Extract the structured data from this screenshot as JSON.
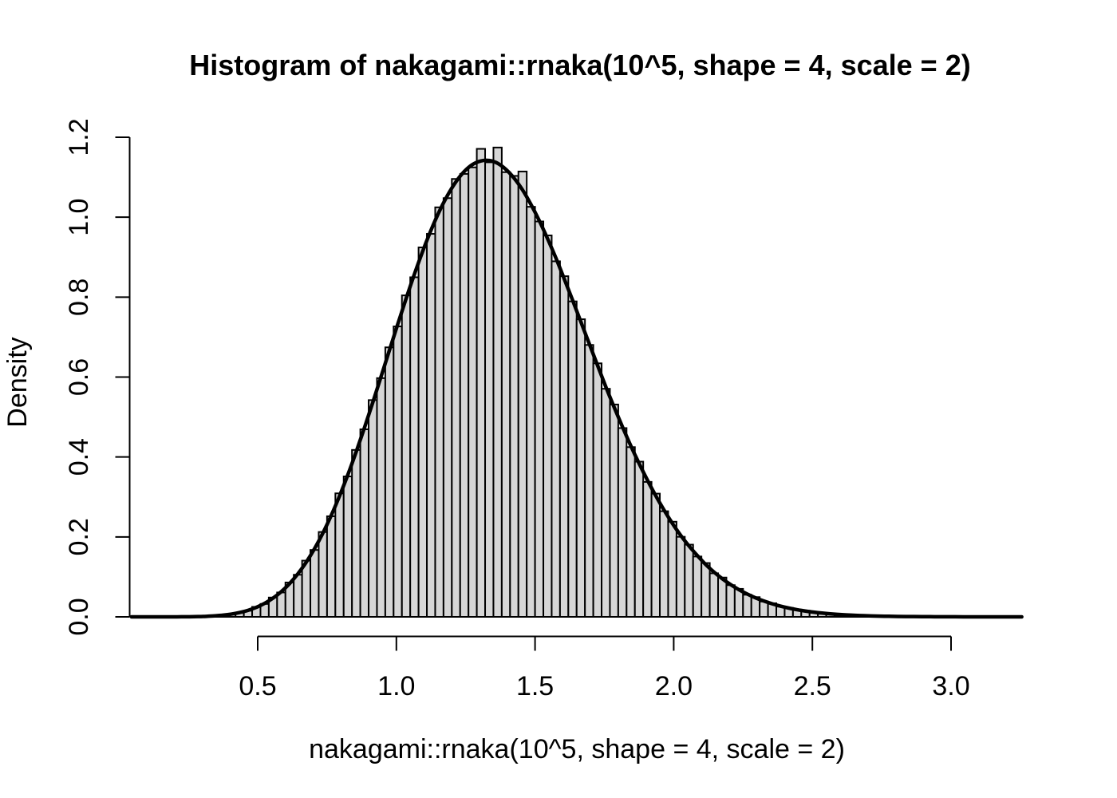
{
  "figure": {
    "title": "Histogram of nakagami::rnaka(10^5, shape = 4, scale = 2)",
    "x_label": "nakagami::rnaka(10^5, shape = 4, scale = 2)",
    "y_label": "Density"
  },
  "chart_data": {
    "type": "bar",
    "subtype": "histogram",
    "title": "Histogram of nakagami::rnaka(10^5, shape = 4, scale = 2)",
    "xlabel": "nakagami::rnaka(10^5, shape = 4, scale = 2)",
    "ylabel": "Density",
    "grid": false,
    "legend": "none",
    "xlim": [
      0.03,
      3.27
    ],
    "ylim": [
      0,
      1.225
    ],
    "x_ticks": [
      0.5,
      1.0,
      1.5,
      2.0,
      2.5,
      3.0
    ],
    "x_tick_labels": [
      "0.5",
      "1.0",
      "1.5",
      "2.0",
      "2.5",
      "3.0"
    ],
    "y_ticks": [
      0.0,
      0.2,
      0.4,
      0.6,
      0.8,
      1.0,
      1.2
    ],
    "y_tick_labels": [
      "0.0",
      "0.2",
      "0.4",
      "0.6",
      "0.8",
      "1.0",
      "1.2"
    ],
    "colors": {
      "bar_fill": "#d6d6d6",
      "bar_stroke": "#000000",
      "curve": "#000000",
      "axis": "#000000",
      "background": "#ffffff"
    },
    "bins": {
      "start": 0.15,
      "width": 0.03,
      "densities": [
        0,
        0,
        0.00033,
        0.00033,
        0.00067,
        0.00133,
        0.00267,
        0.00433,
        0.00667,
        0.011,
        0.01533,
        0.025,
        0.03233,
        0.04833,
        0.061,
        0.086,
        0.10533,
        0.14067,
        0.16733,
        0.21233,
        0.25167,
        0.309,
        0.35133,
        0.41767,
        0.46933,
        0.54233,
        0.59733,
        0.67433,
        0.72667,
        0.80433,
        0.84967,
        0.92433,
        0.95833,
        1.02467,
        1.04767,
        1.09567,
        1.10833,
        1.12467,
        1.171,
        1.13733,
        1.17433,
        1.11267,
        1.10333,
        1.11433,
        1.026,
        0.98933,
        0.95433,
        0.88967,
        0.85233,
        0.78933,
        0.74467,
        0.68033,
        0.63433,
        0.57067,
        0.53133,
        0.47233,
        0.42467,
        0.38833,
        0.33767,
        0.30833,
        0.26433,
        0.238,
        0.20033,
        0.18067,
        0.151,
        0.13467,
        0.109,
        0.09833,
        0.07933,
        0.07,
        0.05533,
        0.04933,
        0.03833,
        0.034,
        0.02567,
        0.02233,
        0.017,
        0.01533,
        0.011,
        0.00967,
        0.00733,
        0.00633,
        0.00433,
        0.004,
        0.00267,
        0.00233,
        0.002,
        0.00133,
        0.001,
        0.001,
        0.00067,
        0.00033,
        0.00033,
        0.00033,
        0.00033,
        0,
        0.00033,
        0,
        0,
        0.00033
      ]
    },
    "curve": {
      "name": "density estimate (Nakagami pdf, shape = 4, scale = 2)",
      "x_start": 0.045,
      "x_step": 0.03,
      "y": [
        0,
        0,
        0,
        1e-05,
        2e-05,
        5e-05,
        0.00014,
        0.00033,
        0.00069,
        0.00135,
        0.00245,
        0.0042,
        0.00687,
        0.01077,
        0.01623,
        0.02375,
        0.03377,
        0.04675,
        0.06309,
        0.08329,
        0.10779,
        0.13687,
        0.17078,
        0.20969,
        0.25366,
        0.30239,
        0.3555,
        0.41293,
        0.47348,
        0.53659,
        0.60158,
        0.66725,
        0.73243,
        0.79628,
        0.85743,
        0.91495,
        0.96772,
        1.01478,
        1.05532,
        1.0887,
        1.11444,
        1.13198,
        1.14083,
        1.14181,
        1.13485,
        1.11957,
        1.09718,
        1.06804,
        1.0322,
        0.99172,
        0.9464,
        0.89817,
        0.84608,
        0.79296,
        0.7386,
        0.68417,
        0.62993,
        0.576,
        0.52486,
        0.47571,
        0.42846,
        0.38408,
        0.34233,
        0.30335,
        0.26727,
        0.23412,
        0.20405,
        0.17747,
        0.15348,
        0.13126,
        0.11221,
        0.09555,
        0.08083,
        0.06805,
        0.05709,
        0.04758,
        0.03957,
        0.0327,
        0.02688,
        0.02198,
        0.01792,
        0.01451,
        0.01172,
        0.0094,
        0.00752,
        0.006,
        0.00474,
        0.00374,
        0.00293,
        0.0023,
        0.00179,
        0.0014,
        0.00108,
        0.00083,
        0.00064,
        0.00049,
        0.00037,
        0.00028,
        0.00021,
        0.00016,
        0.00012,
        9e-05,
        7e-05,
        5e-05,
        4e-05,
        3e-05,
        2e-05,
        2e-05
      ]
    }
  }
}
